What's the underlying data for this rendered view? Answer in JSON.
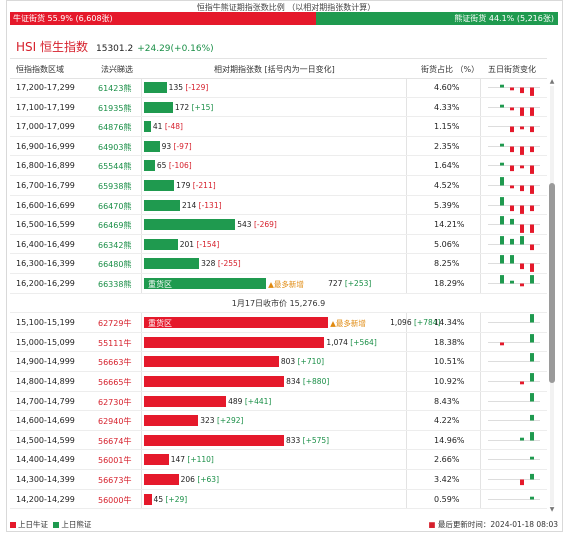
{
  "title": "恒指牛熊证期指张数比例 （以相对期指张数计算）",
  "ratio": {
    "bull_label": "牛证街货",
    "bull_pct": "55.9%",
    "bull_count": "(6,608张)",
    "bear_label": "熊证街货",
    "bear_pct": "44.1%",
    "bear_count": "(5,216张)",
    "bull_fraction": 0.559
  },
  "index": {
    "name": "HSI 恒生指数",
    "price": "15301.2",
    "change": "+24.29(+0.16%)"
  },
  "columns": {
    "range": "恒指指数区域",
    "street": "法兴睇选",
    "contracts": "相对期指张数 [括号内为一日变化]",
    "pct": "街货占比 （%）",
    "trend": "五日街货变化"
  },
  "bear_rows": [
    {
      "range": "17,200-17,299",
      "street": "61423熊",
      "num": "135",
      "chg": "[-129]",
      "chg_dir": "d",
      "pct": "4.60%",
      "bar": 135,
      "spark": [
        0,
        1,
        -1,
        -2,
        -3
      ]
    },
    {
      "range": "17,100-17,199",
      "street": "61935熊",
      "num": "172",
      "chg": "[+15]",
      "chg_dir": "u",
      "pct": "4.33%",
      "bar": 172,
      "spark": [
        0,
        1,
        -1,
        -3,
        -3
      ]
    },
    {
      "range": "17,000-17,099",
      "street": "64876熊",
      "num": "41",
      "chg": "[-48]",
      "chg_dir": "d",
      "pct": "1.15%",
      "bar": 41,
      "spark": [
        0,
        0,
        -2,
        -1,
        -2
      ]
    },
    {
      "range": "16,900-16,999",
      "street": "64903熊",
      "num": "93",
      "chg": "[-97]",
      "chg_dir": "d",
      "pct": "2.35%",
      "bar": 93,
      "spark": [
        0,
        1,
        -2,
        -3,
        -2
      ]
    },
    {
      "range": "16,800-16,899",
      "street": "65544熊",
      "num": "65",
      "chg": "[-106]",
      "chg_dir": "d",
      "pct": "1.64%",
      "bar": 65,
      "spark": [
        0,
        1,
        -2,
        -1,
        -3
      ]
    },
    {
      "range": "16,700-16,799",
      "street": "65938熊",
      "num": "179",
      "chg": "[-211]",
      "chg_dir": "d",
      "pct": "4.52%",
      "bar": 179,
      "spark": [
        0,
        3,
        -1,
        -2,
        -3
      ]
    },
    {
      "range": "16,600-16,699",
      "street": "66470熊",
      "num": "214",
      "chg": "[-131]",
      "chg_dir": "d",
      "pct": "5.39%",
      "bar": 214,
      "spark": [
        0,
        3,
        -2,
        -3,
        -2
      ]
    },
    {
      "range": "16,500-16,599",
      "street": "66469熊",
      "num": "543",
      "chg": "[-269]",
      "chg_dir": "d",
      "pct": "14.21%",
      "bar": 543,
      "spark": [
        0,
        3,
        2,
        -3,
        -3
      ]
    },
    {
      "range": "16,400-16,499",
      "street": "66342熊",
      "num": "201",
      "chg": "[-154]",
      "chg_dir": "d",
      "pct": "5.06%",
      "bar": 201,
      "spark": [
        0,
        3,
        2,
        3,
        -2
      ]
    },
    {
      "range": "16,300-16,399",
      "street": "66480熊",
      "num": "328",
      "chg": "[-255]",
      "chg_dir": "d",
      "pct": "8.25%",
      "bar": 328,
      "spark": [
        0,
        3,
        3,
        -2,
        -3
      ]
    },
    {
      "range": "16,200-16,299",
      "street": "66338熊",
      "num": "727",
      "chg": "[+253]",
      "chg_dir": "u",
      "pct": "18.29%",
      "bar": 727,
      "spark": [
        0,
        3,
        1,
        -1,
        3
      ],
      "tag": "重货区",
      "new": "▲最多新增"
    }
  ],
  "divider": "1月17日收市价 15,276.9",
  "bull_rows": [
    {
      "range": "15,100-15,199",
      "street": "62729牛",
      "num": "1,096",
      "chg": "[+784]",
      "chg_dir": "u",
      "pct": "14.34%",
      "bar": 1096,
      "spark": [
        0,
        0,
        0,
        0,
        3
      ],
      "tag": "重货区",
      "new": "▲最多新增"
    },
    {
      "range": "15,000-15,099",
      "street": "55111牛",
      "num": "1,074",
      "chg": "[+564]",
      "chg_dir": "u",
      "pct": "18.38%",
      "bar": 1074,
      "spark": [
        0,
        -1,
        0,
        0,
        3
      ]
    },
    {
      "range": "14,900-14,999",
      "street": "56663牛",
      "num": "803",
      "chg": "[+710]",
      "chg_dir": "u",
      "pct": "10.51%",
      "bar": 803,
      "spark": [
        0,
        0,
        0,
        0,
        3
      ]
    },
    {
      "range": "14,800-14,899",
      "street": "56665牛",
      "num": "834",
      "chg": "[+880]",
      "chg_dir": "u",
      "pct": "10.92%",
      "bar": 834,
      "spark": [
        0,
        0,
        0,
        -1,
        3
      ]
    },
    {
      "range": "14,700-14,799",
      "street": "62730牛",
      "num": "489",
      "chg": "[+441]",
      "chg_dir": "u",
      "pct": "8.43%",
      "bar": 489,
      "spark": [
        0,
        0,
        0,
        0,
        3
      ]
    },
    {
      "range": "14,600-14,699",
      "street": "62940牛",
      "num": "323",
      "chg": "[+292]",
      "chg_dir": "u",
      "pct": "4.22%",
      "bar": 323,
      "spark": [
        0,
        0,
        0,
        0,
        2
      ]
    },
    {
      "range": "14,500-14,599",
      "street": "56674牛",
      "num": "833",
      "chg": "[+575]",
      "chg_dir": "u",
      "pct": "14.96%",
      "bar": 833,
      "spark": [
        0,
        0,
        0,
        1,
        3
      ]
    },
    {
      "range": "14,400-14,499",
      "street": "56001牛",
      "num": "147",
      "chg": "[+110]",
      "chg_dir": "u",
      "pct": "2.66%",
      "bar": 147,
      "spark": [
        0,
        0,
        0,
        0,
        1
      ]
    },
    {
      "range": "14,300-14,399",
      "street": "56673牛",
      "num": "206",
      "chg": "[+63]",
      "chg_dir": "u",
      "pct": "3.42%",
      "bar": 206,
      "spark": [
        0,
        0,
        0,
        -2,
        2
      ]
    },
    {
      "range": "14,200-14,299",
      "street": "56000牛",
      "num": "45",
      "chg": "[+29]",
      "chg_dir": "u",
      "pct": "0.59%",
      "bar": 45,
      "spark": [
        0,
        0,
        0,
        0,
        1
      ]
    }
  ],
  "footer": {
    "bull_legend": "上日牛证",
    "bear_legend": "上日熊证",
    "updated_label": "最后更新时间：",
    "updated_time": "2024-01-18 08:03"
  },
  "colors": {
    "bull": "#e5192b",
    "bear": "#1f9a4f"
  }
}
